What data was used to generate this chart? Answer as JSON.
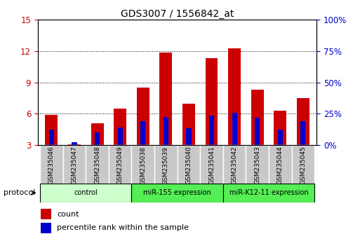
{
  "title": "GDS3007 / 1556842_at",
  "samples": [
    "GSM235046",
    "GSM235047",
    "GSM235048",
    "GSM235049",
    "GSM235038",
    "GSM235039",
    "GSM235040",
    "GSM235041",
    "GSM235042",
    "GSM235043",
    "GSM235044",
    "GSM235045"
  ],
  "count_values": [
    5.9,
    3.1,
    5.1,
    6.5,
    8.5,
    11.9,
    7.0,
    11.3,
    12.3,
    8.3,
    6.3,
    7.5
  ],
  "percentile_values": [
    4.5,
    3.3,
    4.2,
    4.7,
    5.3,
    5.7,
    4.6,
    5.8,
    6.1,
    5.6,
    4.5,
    5.3
  ],
  "count_color": "#cc0000",
  "percentile_color": "#0000cc",
  "y_min": 3,
  "y_max": 15,
  "y_ticks": [
    3,
    6,
    9,
    12,
    15
  ],
  "right_y_tick_labels": [
    "0%",
    "25%",
    "50%",
    "75%",
    "100%"
  ],
  "bar_width": 0.55,
  "blue_bar_width": 0.22,
  "title_fontsize": 10,
  "legend_label_count": "count",
  "legend_label_percentile": "percentile rank within the sample",
  "left_tick_color": "#cc0000",
  "right_tick_color": "#0000cc",
  "group_configs": [
    {
      "start": 0,
      "end": 3,
      "label": "control",
      "color": "#ccffcc"
    },
    {
      "start": 4,
      "end": 7,
      "label": "miR-155 expression",
      "color": "#55ee55"
    },
    {
      "start": 8,
      "end": 11,
      "label": "miR-K12-11 expression",
      "color": "#55ee55"
    }
  ],
  "xtick_bg_color": "#c8c8c8",
  "xtick_sep_color": "#ffffff",
  "protocol_label": "protocol"
}
